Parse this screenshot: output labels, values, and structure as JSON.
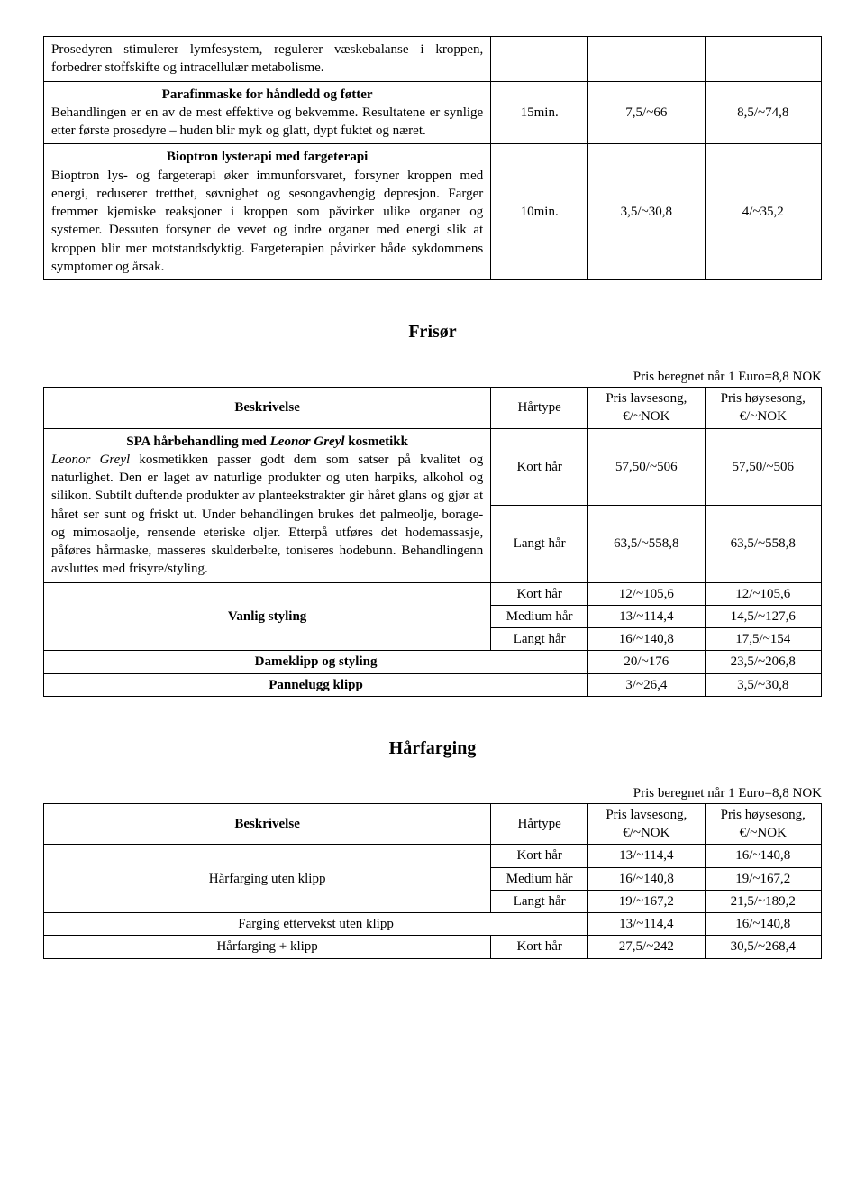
{
  "table1": {
    "rows": [
      {
        "desc": "Prosedyren stimulerer lymfesystem, regulerer væskebalanse i kroppen, forbedrer stoffskifte og intracellulær metabolisme.",
        "time": "",
        "low": "",
        "high": ""
      },
      {
        "title": "Parafinmaske for håndledd og føtter",
        "desc": "Behandlingen er en av de mest effektive og bekvemme. Resultatene er synlige etter første prosedyre – huden blir myk og glatt, dypt fuktet og næret.",
        "time": "15min.",
        "low": "7,5/~66",
        "high": "8,5/~74,8"
      },
      {
        "title": "Bioptron lysterapi med fargeterapi",
        "desc": "Bioptron lys- og fargeterapi øker immunforsvaret, forsyner kroppen med energi, reduserer tretthet, søvnighet og sesongavhengig depresjon. Farger fremmer kjemiske reaksjoner i kroppen som påvirker ulike organer og systemer. Dessuten forsyner de vevet og indre organer med energi slik at kroppen blir mer motstandsdyktig. Fargeterapien påvirker både sykdommens symptomer og årsak.",
        "time": "10min.",
        "low": "3,5/~30,8",
        "high": "4/~35,2"
      }
    ]
  },
  "frisor": {
    "title": "Frisør",
    "price_note": "Pris beregnet når 1 Euro=8,8 NOK",
    "head_desc": "Beskrivelse",
    "head_type": "Hårtype",
    "head_low": "Pris lavsesong, €/~NOK",
    "head_high": "Pris høysesong, €/~NOK",
    "spa_title_pre": "SPA hårbehandling med ",
    "spa_title_brand": "Leonor Greyl",
    "spa_title_post": " kosmetikk",
    "spa_desc_brand": "Leonor Greyl",
    "spa_desc_1": " kosmetikken passer godt dem som satser på kvalitet og naturlighet. Den er laget av naturlige produkter og uten harpiks, alkohol og silikon. Subtilt duftende produkter av planteekstrakter gir håret glans og gjør at håret ser sunt og friskt ut. Under behandlingen brukes det palmeolje, borage- og mimosaolje, rensende eteriske oljer. Etterpå utføres det hodemassasje, påføres hårmaske, masseres skulderbelte, toniseres hodebunn. Behandlingenn avsluttes med frisyre/styling.",
    "spa_short_type": "Kort hår",
    "spa_short_low": "57,50/~506",
    "spa_short_high": "57,50/~506",
    "spa_long_type": "Langt hår",
    "spa_long_low": "63,5/~558,8",
    "spa_long_high": "63,5/~558,8",
    "vanlig_label": "Vanlig styling",
    "vanlig_short_type": "Kort hår",
    "vanlig_short_low": "12/~105,6",
    "vanlig_short_high": "12/~105,6",
    "vanlig_med_type": "Medium hår",
    "vanlig_med_low": "13/~114,4",
    "vanlig_med_high": "14,5/~127,6",
    "vanlig_long_type": "Langt hår",
    "vanlig_long_low": "16/~140,8",
    "vanlig_long_high": "17,5/~154",
    "dameklipp_label": "Dameklipp og styling",
    "dameklipp_low": "20/~176",
    "dameklipp_high": "23,5/~206,8",
    "pannelugg_label": "Pannelugg klipp",
    "pannelugg_low": "3/~26,4",
    "pannelugg_high": "3,5/~30,8"
  },
  "harfarging": {
    "title": "Hårfarging",
    "price_note": "Pris beregnet når 1 Euro=8,8 NOK",
    "head_desc": "Beskrivelse",
    "head_type": "Hårtype",
    "head_low": "Pris lavsesong, €/~NOK",
    "head_high": "Pris høysesong, €/~NOK",
    "uten_label": "Hårfarging uten klipp",
    "uten_short_type": "Kort hår",
    "uten_short_low": "13/~114,4",
    "uten_short_high": "16/~140,8",
    "uten_med_type": "Medium hår",
    "uten_med_low": "16/~140,8",
    "uten_med_high": "19/~167,2",
    "uten_long_type": "Langt hår",
    "uten_long_low": "19/~167,2",
    "uten_long_high": "21,5/~189,2",
    "ettervekst_label": "Farging ettervekst uten klipp",
    "ettervekst_low": "13/~114,4",
    "ettervekst_high": "16/~140,8",
    "plusklipp_label": "Hårfarging + klipp",
    "plusklipp_type": "Kort hår",
    "plusklipp_low": "27,5/~242",
    "plusklipp_high": "30,5/~268,4"
  }
}
